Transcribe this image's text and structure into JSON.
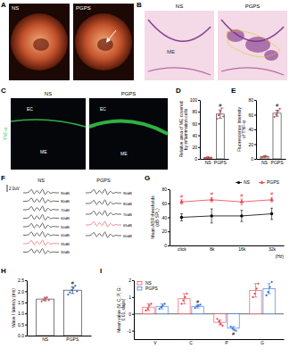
{
  "panel_labels": [
    "A",
    "B",
    "C",
    "D",
    "E",
    "F",
    "G",
    "H",
    "I"
  ],
  "images": {
    "A": {
      "labels": [
        "NS",
        "PGPS"
      ]
    },
    "B": {
      "labels": [
        "NS",
        "PGPS"
      ],
      "annotations": [
        "ME"
      ]
    },
    "C": {
      "labels": [
        "NS",
        "PGPS"
      ],
      "stain": "TNF-α",
      "annotations": [
        "EC",
        "ME",
        "EC",
        "ME"
      ]
    }
  },
  "abr": {
    "scale_label": "2.0uV",
    "waveform": [
      0,
      0,
      0.3,
      1.8,
      -0.6,
      1.2,
      -0.4,
      2.0,
      -1.0,
      0.8,
      -0.3,
      0.2,
      0,
      0
    ],
    "groups": [
      {
        "name": "NS",
        "levels": [
          "90dB",
          "80dB",
          "70dB",
          "60dB",
          "50dB",
          "40dB",
          "35dB",
          "30dB"
        ],
        "colors": [
          "#000000",
          "#000000",
          "#000000",
          "#000000",
          "#000000",
          "#000000",
          "#e8414a",
          "#000000"
        ]
      },
      {
        "name": "PGPS",
        "levels": [
          "90dB",
          "80dB",
          "70dB",
          "65dB",
          "60dB"
        ],
        "colors": [
          "#000000",
          "#000000",
          "#000000",
          "#e8414a",
          "#000000"
        ]
      }
    ]
  },
  "chart_data": [
    {
      "type": "bar",
      "y_label": "Relative area of ME covered by inflammation cells",
      "categories": [
        "NS",
        "PGPS"
      ],
      "values": [
        2,
        76
      ],
      "error": [
        1,
        7
      ],
      "points": [
        [
          1,
          2,
          3,
          1,
          2
        ],
        [
          68,
          74,
          80,
          86,
          72
        ]
      ],
      "colors": [
        "#e8414a",
        "#e8414a"
      ],
      "annotations": [
        null,
        "#"
      ],
      "ylim": [
        0,
        100
      ],
      "yticks": [
        0,
        20,
        40,
        60,
        80,
        100
      ]
    },
    {
      "type": "bar",
      "y_label": "Fluorescence Intensity of TNF-α",
      "categories": [
        "NS",
        "PGPS"
      ],
      "values": [
        3,
        62
      ],
      "error": [
        1,
        4
      ],
      "points": [
        [
          2,
          3,
          4,
          3
        ],
        [
          57,
          60,
          65,
          68
        ]
      ],
      "colors": [
        "#e8414a",
        "#e8414a"
      ],
      "annotations": [
        null,
        "#"
      ],
      "ylim": [
        0,
        80
      ],
      "yticks": [
        0,
        20,
        40,
        60,
        80
      ]
    },
    {
      "type": "line",
      "y_label": "Mean ABR thresholds (dB SPL)",
      "x_label": "(Hz)",
      "categories": [
        "click",
        "8k",
        "16k",
        "32k"
      ],
      "series": [
        {
          "name": "NS",
          "color": "#000000",
          "marker": "circle",
          "line_style": "solid",
          "values": [
            40,
            42,
            42,
            45
          ],
          "error": [
            5,
            10,
            8,
            8
          ]
        },
        {
          "name": "PGPS",
          "color": "#e8414a",
          "marker": "triangle",
          "line_style": "solid",
          "values": [
            62,
            65,
            62,
            65
          ],
          "error": [
            3,
            3,
            4,
            3
          ]
        }
      ],
      "annotations": [
        "#",
        "#",
        "#",
        "#"
      ],
      "ylim": [
        0,
        80
      ],
      "yticks": [
        0,
        20,
        40,
        60,
        80
      ],
      "legend": "upper right"
    },
    {
      "type": "bar",
      "y_label": "Wave I latency (ms)",
      "categories": [
        "NS",
        "PGPS"
      ],
      "values": [
        1.65,
        2.05
      ],
      "error": [
        0.08,
        0.15
      ],
      "points": [
        [
          1.55,
          1.62,
          1.68,
          1.72,
          1.6
        ],
        [
          1.85,
          1.95,
          2.05,
          2.15,
          2.25,
          2.0
        ]
      ],
      "colors": [
        "#e8414a",
        "#2e6fd8"
      ],
      "annotations": [
        null,
        "#"
      ],
      "ylim": [
        0,
        2.5
      ],
      "yticks": [
        {
          "value": 0,
          "label": "0.0"
        },
        0.5,
        {
          "value": 1,
          "label": "1.0"
        },
        1.5,
        {
          "value": 2,
          "label": "2.0"
        },
        2.5
      ]
    },
    {
      "type": "bar",
      "y_label": "Mean value (V, C, P, G: 0.01, daps)",
      "categories": [
        "V",
        "C",
        "P",
        "G"
      ],
      "series": [
        {
          "name": "NS",
          "color": "#e8414a",
          "values": [
            0.4,
            0.9,
            -0.5,
            1.4
          ],
          "error": [
            0.2,
            0.3,
            0.15,
            0.4
          ],
          "points": [
            [
              0.2,
              0.3,
              0.5,
              0.6
            ],
            [
              0.6,
              0.8,
              1.0,
              1.2
            ],
            [
              -0.3,
              -0.45,
              -0.6,
              -0.7
            ],
            [
              1.0,
              1.2,
              1.5,
              1.8
            ]
          ]
        },
        {
          "name": "PGPS",
          "color": "#2e6fd8",
          "values": [
            0.45,
            0.45,
            -0.85,
            1.5
          ],
          "error": [
            0.15,
            0.1,
            0.1,
            0.3
          ],
          "points": [
            [
              0.3,
              0.4,
              0.5,
              0.6
            ],
            [
              0.35,
              0.45,
              0.5,
              0.55
            ],
            [
              -0.75,
              -0.85,
              -0.95,
              -1.0
            ],
            [
              1.1,
              1.3,
              1.6,
              1.9
            ]
          ],
          "annotations": [
            null,
            "#",
            "#",
            null
          ]
        }
      ],
      "ylim": [
        -1.5,
        2
      ],
      "yticks": [
        -1,
        0,
        1,
        2
      ],
      "legend": "upper left"
    }
  ]
}
